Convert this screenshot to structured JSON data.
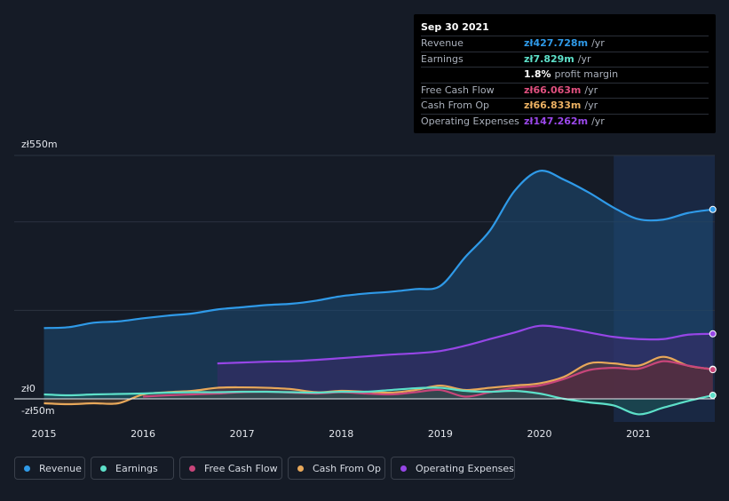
{
  "tooltip": {
    "date": "Sep 30 2021",
    "rows": [
      {
        "label": "Revenue",
        "value": "zł427.728m",
        "unit": "/yr",
        "color": "#2f9ae8"
      },
      {
        "label": "Earnings",
        "value": "zł7.829m",
        "unit": "/yr",
        "color": "#5de0c9"
      },
      {
        "label": "",
        "value": "1.8%",
        "unit": "profit margin",
        "color": "#ffffff"
      },
      {
        "label": "Free Cash Flow",
        "value": "zł66.063m",
        "unit": "/yr",
        "color": "#e0507f"
      },
      {
        "label": "Cash From Op",
        "value": "zł66.833m",
        "unit": "/yr",
        "color": "#ebb062"
      },
      {
        "label": "Operating Expenses",
        "value": "zł147.262m",
        "unit": "/yr",
        "color": "#9b48eb"
      }
    ]
  },
  "legend": [
    {
      "label": "Revenue",
      "color": "#2f9ae8"
    },
    {
      "label": "Earnings",
      "color": "#5de0c9"
    },
    {
      "label": "Free Cash Flow",
      "color": "#c8457a"
    },
    {
      "label": "Cash From Op",
      "color": "#e8a85a"
    },
    {
      "label": "Operating Expenses",
      "color": "#9646e6"
    }
  ],
  "chart_data": {
    "type": "area",
    "y_tick_labels": [
      "zł550m",
      "zł0",
      "-zł50m"
    ],
    "ylim": [
      -50,
      550
    ],
    "x_ticks": [
      2015,
      2016,
      2017,
      2018,
      2019,
      2020,
      2021
    ],
    "xlim": [
      2014.7,
      2021.77
    ],
    "highlight_start": 2020.75,
    "series": [
      {
        "name": "Revenue",
        "color": "#2f9ae8",
        "fill": "#1d4d77",
        "x": [
          2015,
          2015.25,
          2015.5,
          2015.75,
          2016,
          2016.25,
          2016.5,
          2016.75,
          2017,
          2017.25,
          2017.5,
          2017.75,
          2018,
          2018.25,
          2018.5,
          2018.75,
          2019,
          2019.25,
          2019.5,
          2019.75,
          2020,
          2020.25,
          2020.5,
          2020.75,
          2021,
          2021.25,
          2021.5,
          2021.75
        ],
        "y": [
          160,
          162,
          172,
          175,
          182,
          188,
          193,
          202,
          207,
          212,
          215,
          222,
          232,
          238,
          242,
          248,
          255,
          320,
          380,
          470,
          515,
          495,
          466,
          432,
          406,
          405,
          420,
          428
        ]
      },
      {
        "name": "Earnings",
        "color": "#5de0c9",
        "fill": "#1b5a58",
        "x": [
          2015,
          2015.25,
          2015.5,
          2015.75,
          2016,
          2016.25,
          2016.5,
          2016.75,
          2017,
          2017.25,
          2017.5,
          2017.75,
          2018,
          2018.25,
          2018.5,
          2018.75,
          2019,
          2019.25,
          2019.5,
          2019.75,
          2020,
          2020.25,
          2020.5,
          2020.75,
          2021,
          2021.25,
          2021.5,
          2021.75
        ],
        "y": [
          10,
          8,
          10,
          11,
          12,
          14,
          15,
          15,
          16,
          16,
          15,
          14,
          16,
          16,
          20,
          24,
          25,
          18,
          16,
          18,
          12,
          0,
          -8,
          -15,
          -35,
          -20,
          -5,
          8
        ]
      },
      {
        "name": "Free Cash Flow",
        "color": "#c8457a",
        "fill": "#5a2540",
        "x": [
          2016,
          2016.25,
          2016.5,
          2016.75,
          2017,
          2017.25,
          2017.5,
          2017.75,
          2018,
          2018.25,
          2018.5,
          2018.75,
          2019,
          2019.25,
          2019.5,
          2019.75,
          2020,
          2020.25,
          2020.5,
          2020.75,
          2021,
          2021.25,
          2021.5,
          2021.75
        ],
        "y": [
          5,
          8,
          10,
          12,
          15,
          16,
          14,
          12,
          15,
          12,
          10,
          15,
          20,
          5,
          15,
          25,
          30,
          45,
          65,
          70,
          68,
          85,
          75,
          66
        ]
      },
      {
        "name": "Cash From Op",
        "color": "#e8a85a",
        "fill": "#5d4330",
        "x": [
          2015,
          2015.25,
          2015.5,
          2015.75,
          2016,
          2016.25,
          2016.5,
          2016.75,
          2017,
          2017.25,
          2017.5,
          2017.75,
          2018,
          2018.25,
          2018.5,
          2018.75,
          2019,
          2019.25,
          2019.5,
          2019.75,
          2020,
          2020.25,
          2020.5,
          2020.75,
          2021,
          2021.25,
          2021.5,
          2021.75
        ],
        "y": [
          -10,
          -12,
          -10,
          -10,
          10,
          15,
          18,
          25,
          26,
          25,
          22,
          15,
          18,
          16,
          14,
          20,
          30,
          20,
          25,
          30,
          35,
          50,
          80,
          80,
          75,
          95,
          75,
          67
        ]
      },
      {
        "name": "Operating Expenses",
        "color": "#9646e6",
        "fill": "#3a2a6a",
        "x": [
          2016.75,
          2017,
          2017.25,
          2017.5,
          2017.75,
          2018,
          2018.25,
          2018.5,
          2018.75,
          2019,
          2019.25,
          2019.5,
          2019.75,
          2020,
          2020.25,
          2020.5,
          2020.75,
          2021,
          2021.25,
          2021.5,
          2021.75
        ],
        "y": [
          80,
          82,
          84,
          85,
          88,
          92,
          96,
          100,
          103,
          108,
          120,
          135,
          150,
          165,
          160,
          150,
          140,
          135,
          135,
          145,
          147
        ]
      }
    ]
  }
}
